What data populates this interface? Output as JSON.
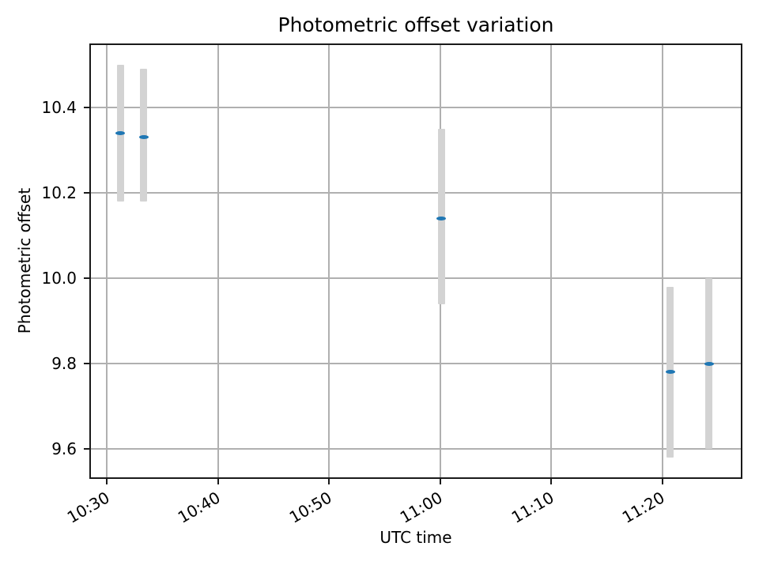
{
  "chart_data": {
    "type": "scatter",
    "title": "Photometric offset variation",
    "xlabel": "UTC time",
    "ylabel": "Photometric offset",
    "grid": true,
    "legend": "none",
    "xlim_minutes_after_10_30": [
      -1.6,
      57.2
    ],
    "ylim": [
      9.53,
      10.55
    ],
    "x_ticks": [
      {
        "label": "10:30",
        "minutes": 0
      },
      {
        "label": "10:40",
        "minutes": 10
      },
      {
        "label": "10:50",
        "minutes": 20
      },
      {
        "label": "11:00",
        "minutes": 30
      },
      {
        "label": "11:10",
        "minutes": 40
      },
      {
        "label": "11:20",
        "minutes": 50
      }
    ],
    "y_ticks": [
      {
        "label": "9.6",
        "value": 9.6
      },
      {
        "label": "9.8",
        "value": 9.8
      },
      {
        "label": "10.0",
        "value": 10.0
      },
      {
        "label": "10.2",
        "value": 10.2
      },
      {
        "label": "10.4",
        "value": 10.4
      }
    ],
    "points": [
      {
        "time": "10:31",
        "minutes": 1.2,
        "value": 10.34,
        "err_low": 10.18,
        "err_high": 10.5
      },
      {
        "time": "10:33",
        "minutes": 3.3,
        "value": 10.33,
        "err_low": 10.18,
        "err_high": 10.49
      },
      {
        "time": "11:00",
        "minutes": 30.1,
        "value": 10.14,
        "err_low": 9.94,
        "err_high": 10.35
      },
      {
        "time": "11:21",
        "minutes": 50.7,
        "value": 9.78,
        "err_low": 9.58,
        "err_high": 9.98
      },
      {
        "time": "11:24",
        "minutes": 54.2,
        "value": 9.8,
        "err_low": 9.6,
        "err_high": 10.0
      }
    ],
    "colors": {
      "marker": "#1f77b4",
      "error_bar": "#d3d3d3",
      "grid": "#b0b0b0",
      "spine": "#1a1a1a",
      "text": "#000000",
      "background": "#ffffff"
    }
  }
}
